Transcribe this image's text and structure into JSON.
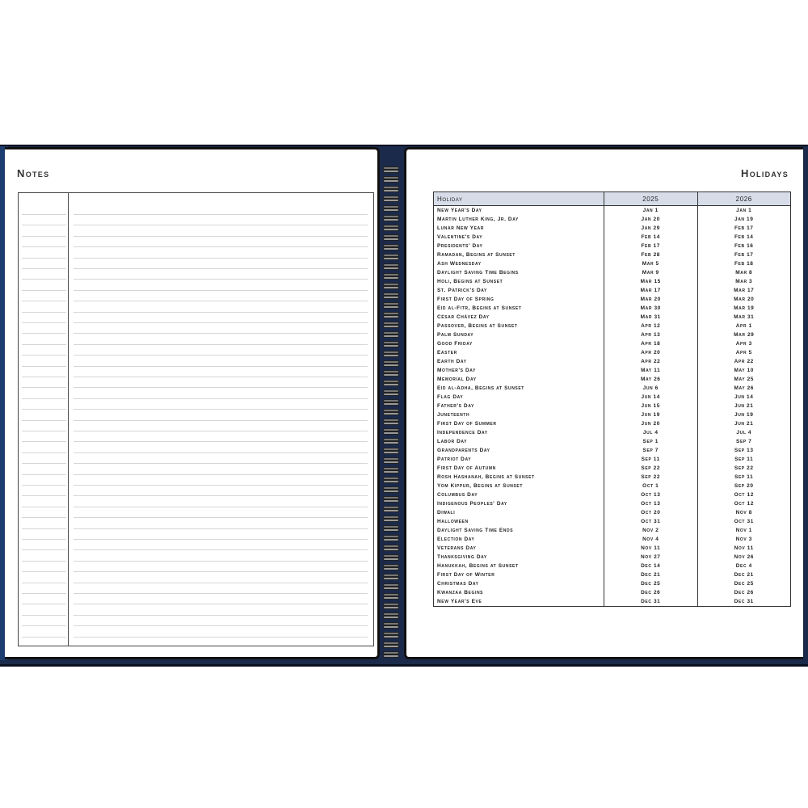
{
  "notes_page": {
    "title": "Notes"
  },
  "holidays_page": {
    "title": "Holidays",
    "columns": [
      "Holiday",
      "2025",
      "2026"
    ],
    "rows": [
      [
        "New Year's Day",
        "Jan 1",
        "Jan 1"
      ],
      [
        "Martin Luther King, Jr. Day",
        "Jan 20",
        "Jan 19"
      ],
      [
        "Lunar New Year",
        "Jan 29",
        "Feb 17"
      ],
      [
        "Valentine's Day",
        "Feb 14",
        "Feb 14"
      ],
      [
        "Presidents' Day",
        "Feb 17",
        "Feb 16"
      ],
      [
        "Ramadan, Begins at Sunset",
        "Feb 28",
        "Feb 17"
      ],
      [
        "Ash Wednesday",
        "Mar 5",
        "Feb 18"
      ],
      [
        "Daylight Saving Time Begins",
        "Mar 9",
        "Mar 8"
      ],
      [
        "Holi, Begins at Sunset",
        "Mar 15",
        "Mar 3"
      ],
      [
        "St. Patrick's Day",
        "Mar 17",
        "Mar 17"
      ],
      [
        "First Day of Spring",
        "Mar 20",
        "Mar 20"
      ],
      [
        "Eid al-Fitr, Begins at Sunset",
        "Mar 30",
        "Mar 19"
      ],
      [
        "César Chávez Day",
        "Mar 31",
        "Mar 31"
      ],
      [
        "Passover, Begins at Sunset",
        "Apr 12",
        "Apr 1"
      ],
      [
        "Palm Sunday",
        "Apr 13",
        "Mar 29"
      ],
      [
        "Good Friday",
        "Apr 18",
        "Apr 3"
      ],
      [
        "Easter",
        "Apr 20",
        "Apr 5"
      ],
      [
        "Earth Day",
        "Apr 22",
        "Apr 22"
      ],
      [
        "Mother's Day",
        "May 11",
        "May 10"
      ],
      [
        "Memorial Day",
        "May 26",
        "May 25"
      ],
      [
        "Eid al-Adha, Begins at Sunset",
        "Jun 6",
        "May 26"
      ],
      [
        "Flag Day",
        "Jun 14",
        "Jun 14"
      ],
      [
        "Father's Day",
        "Jun 15",
        "Jun 21"
      ],
      [
        "Juneteenth",
        "Jun 19",
        "Jun 19"
      ],
      [
        "First Day of Summer",
        "Jun 20",
        "Jun 21"
      ],
      [
        "Independence Day",
        "Jul 4",
        "Jul 4"
      ],
      [
        "Labor Day",
        "Sep 1",
        "Sep 7"
      ],
      [
        "Grandparents Day",
        "Sep 7",
        "Sep 13"
      ],
      [
        "Patriot Day",
        "Sep 11",
        "Sep 11"
      ],
      [
        "First Day of Autumn",
        "Sep 22",
        "Sep 22"
      ],
      [
        "Rosh Hashanah, Begins at Sunset",
        "Sep 22",
        "Sep 11"
      ],
      [
        "Yom Kippur, Begins at Sunset",
        "Oct 1",
        "Sep 20"
      ],
      [
        "Columbus Day",
        "Oct 13",
        "Oct 12"
      ],
      [
        "Indigenous Peoples' Day",
        "Oct 13",
        "Oct 12"
      ],
      [
        "Diwali",
        "Oct 20",
        "Nov 8"
      ],
      [
        "Halloween",
        "Oct 31",
        "Oct 31"
      ],
      [
        "Daylight Saving Time Ends",
        "Nov 2",
        "Nov 1"
      ],
      [
        "Election Day",
        "Nov 4",
        "Nov 3"
      ],
      [
        "Veterans Day",
        "Nov 11",
        "Nov 11"
      ],
      [
        "Thanksgiving Day",
        "Nov 27",
        "Nov 26"
      ],
      [
        "Hanukkah, Begins at Sunset",
        "Dec 14",
        "Dec 4"
      ],
      [
        "First Day of Winter",
        "Dec 21",
        "Dec 21"
      ],
      [
        "Christmas Day",
        "Dec 25",
        "Dec 25"
      ],
      [
        "Kwanzaa Begins",
        "Dec 26",
        "Dec 26"
      ],
      [
        "New Year's Eve",
        "Dec 31",
        "Dec 31"
      ]
    ]
  },
  "colors": {
    "cover": "#1b2a4a",
    "header_fill": "#d6dde8"
  }
}
